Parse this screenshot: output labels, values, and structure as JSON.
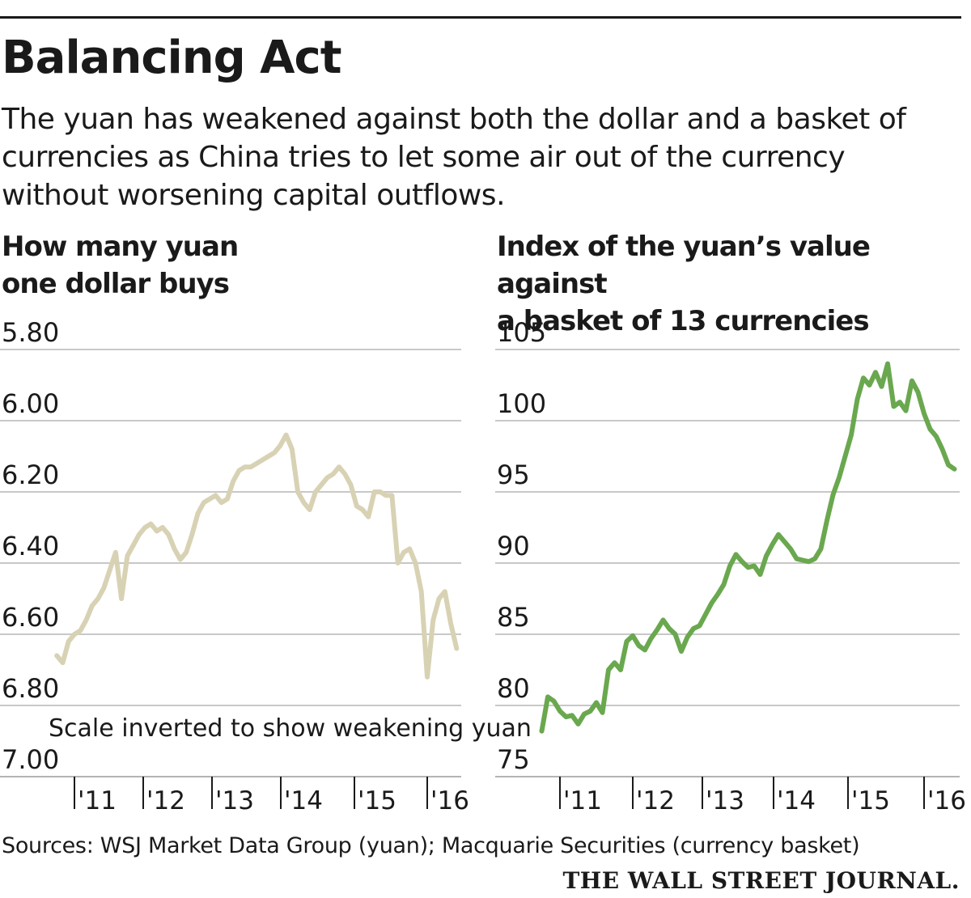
{
  "header": {
    "title": "Balancing Act",
    "subtitle": "The yuan has weakened against both the dollar and a basket of currencies as China tries to let some air out of the currency without worsening capital outflows."
  },
  "footer": {
    "source": "Sources: WSJ Market Data Group (yuan); Macquarie Securities (currency basket)",
    "logo": "THE WALL STREET JOURNAL."
  },
  "chart_data": [
    {
      "type": "line",
      "title": "How many yuan\none dollar buys",
      "annotation": "Scale inverted to show weakening yuan",
      "color": "#d8d2b4",
      "yticks": [
        "5.80",
        "6.00",
        "6.20",
        "6.40",
        "6.60",
        "6.80",
        "7.00"
      ],
      "ylim": [
        5.8,
        7.0
      ],
      "y_inverted": true,
      "grid": true,
      "xticks": [
        "'11",
        "'12",
        "'13",
        "'14",
        "'15",
        "'16"
      ],
      "xlim": [
        "2010-10",
        "2016-07"
      ],
      "x": [
        "2010-10",
        "2010-11",
        "2010-12",
        "2011-01",
        "2011-02",
        "2011-03",
        "2011-04",
        "2011-05",
        "2011-06",
        "2011-07",
        "2011-08",
        "2011-09",
        "2011-10",
        "2011-11",
        "2011-12",
        "2012-01",
        "2012-02",
        "2012-03",
        "2012-04",
        "2012-05",
        "2012-06",
        "2012-07",
        "2012-08",
        "2012-09",
        "2012-10",
        "2012-11",
        "2012-12",
        "2013-01",
        "2013-02",
        "2013-03",
        "2013-04",
        "2013-05",
        "2013-06",
        "2013-07",
        "2013-08",
        "2013-09",
        "2013-10",
        "2013-11",
        "2013-12",
        "2014-01",
        "2014-02",
        "2014-03",
        "2014-04",
        "2014-05",
        "2014-06",
        "2014-07",
        "2014-08",
        "2014-09",
        "2014-10",
        "2014-11",
        "2014-12",
        "2015-01",
        "2015-02",
        "2015-03",
        "2015-04",
        "2015-05",
        "2015-06",
        "2015-07",
        "2015-08",
        "2015-09",
        "2015-10",
        "2015-11",
        "2015-12",
        "2016-01",
        "2016-02",
        "2016-03",
        "2016-04",
        "2016-05",
        "2016-06"
      ],
      "values": [
        6.66,
        6.68,
        6.62,
        6.6,
        6.59,
        6.56,
        6.52,
        6.5,
        6.47,
        6.42,
        6.37,
        6.5,
        6.38,
        6.35,
        6.32,
        6.3,
        6.29,
        6.31,
        6.3,
        6.32,
        6.36,
        6.39,
        6.37,
        6.32,
        6.26,
        6.23,
        6.22,
        6.21,
        6.23,
        6.22,
        6.17,
        6.14,
        6.13,
        6.13,
        6.12,
        6.11,
        6.1,
        6.09,
        6.07,
        6.04,
        6.08,
        6.2,
        6.23,
        6.25,
        6.2,
        6.18,
        6.16,
        6.15,
        6.13,
        6.15,
        6.18,
        6.24,
        6.25,
        6.27,
        6.2,
        6.2,
        6.21,
        6.21,
        6.4,
        6.37,
        6.36,
        6.4,
        6.48,
        6.72,
        6.56,
        6.5,
        6.48,
        6.57,
        6.64
      ]
    },
    {
      "type": "line",
      "title": "Index of the yuan’s value against\na basket of 13 currencies",
      "color": "#6aa84f",
      "yticks": [
        "105",
        "100",
        "95",
        "90",
        "85",
        "80",
        "75"
      ],
      "ylim": [
        75,
        105
      ],
      "grid": true,
      "xticks": [
        "'11",
        "'12",
        "'13",
        "'14",
        "'15",
        "'16"
      ],
      "xlim": [
        "2010-10",
        "2016-07"
      ],
      "x": [
        "2010-10",
        "2010-11",
        "2010-12",
        "2011-01",
        "2011-02",
        "2011-03",
        "2011-04",
        "2011-05",
        "2011-06",
        "2011-07",
        "2011-08",
        "2011-09",
        "2011-10",
        "2011-11",
        "2011-12",
        "2012-01",
        "2012-02",
        "2012-03",
        "2012-04",
        "2012-05",
        "2012-06",
        "2012-07",
        "2012-08",
        "2012-09",
        "2012-10",
        "2012-11",
        "2012-12",
        "2013-01",
        "2013-02",
        "2013-03",
        "2013-04",
        "2013-05",
        "2013-06",
        "2013-07",
        "2013-08",
        "2013-09",
        "2013-10",
        "2013-11",
        "2013-12",
        "2014-01",
        "2014-02",
        "2014-03",
        "2014-04",
        "2014-05",
        "2014-06",
        "2014-07",
        "2014-08",
        "2014-09",
        "2014-10",
        "2014-11",
        "2014-12",
        "2015-01",
        "2015-02",
        "2015-03",
        "2015-04",
        "2015-05",
        "2015-06",
        "2015-07",
        "2015-08",
        "2015-09",
        "2015-10",
        "2015-11",
        "2015-12",
        "2016-01",
        "2016-02",
        "2016-03",
        "2016-04",
        "2016-05",
        "2016-06"
      ],
      "values": [
        78.2,
        80.6,
        80.3,
        79.6,
        79.2,
        79.3,
        78.7,
        79.4,
        79.6,
        80.2,
        79.5,
        82.5,
        83.0,
        82.5,
        84.5,
        84.9,
        84.2,
        83.9,
        84.7,
        85.3,
        86.0,
        85.4,
        85.0,
        83.8,
        84.8,
        85.4,
        85.6,
        86.4,
        87.2,
        87.8,
        88.5,
        89.8,
        90.6,
        90.1,
        89.7,
        89.8,
        89.2,
        90.5,
        91.3,
        92.0,
        91.5,
        91.0,
        90.3,
        90.2,
        90.1,
        90.3,
        91.0,
        93.0,
        94.8,
        96.0,
        97.5,
        99.0,
        101.5,
        103.0,
        102.5,
        103.4,
        102.4,
        104.0,
        101.0,
        101.3,
        100.7,
        102.8,
        102.0,
        100.5,
        99.4,
        98.9,
        98.0,
        96.9,
        96.6
      ]
    }
  ]
}
